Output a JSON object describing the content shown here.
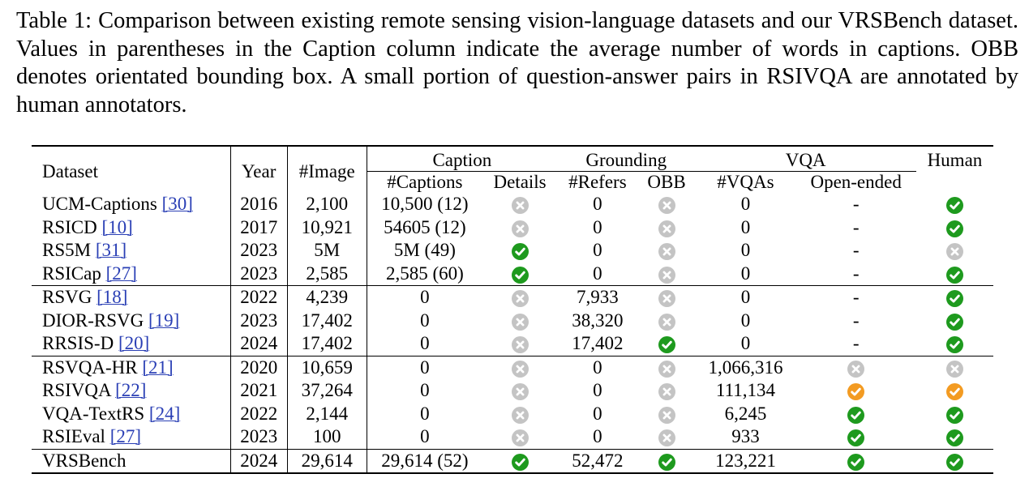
{
  "caption": "Table 1: Comparison between existing remote sensing vision-language datasets and our VRSBench dataset. Values in parentheses in the Caption column indicate the average number of words in captions. OBB denotes orientated bounding box. A small portion of question-answer pairs in RSIVQA are annotated by human annotators.",
  "headers": {
    "dataset": "Dataset",
    "year": "Year",
    "image": "#Image",
    "caption_group": "Caption",
    "grounding_group": "Grounding",
    "vqa_group": "VQA",
    "human": "Human",
    "captions": "#Captions",
    "details": "Details",
    "refers": "#Refers",
    "obb": "OBB",
    "vqas": "#VQAs",
    "open_ended": "Open-ended"
  },
  "icon_colors": {
    "yes": "#1e9a1e",
    "no": "#c4c4c4",
    "partial": "#f39b22"
  },
  "rows": [
    {
      "name": "UCM-Captions",
      "cite": "[30]",
      "year": "2016",
      "images": "2,100",
      "captions": "10,500 (12)",
      "details": "no",
      "refers": "0",
      "obb": "no",
      "vqas": "0",
      "open": "-",
      "human": "yes"
    },
    {
      "name": "RSICD",
      "cite": "[10]",
      "year": "2017",
      "images": "10,921",
      "captions": "54605 (12)",
      "details": "no",
      "refers": "0",
      "obb": "no",
      "vqas": "0",
      "open": "-",
      "human": "yes"
    },
    {
      "name": "RS5M",
      "cite": "[31]",
      "year": "2023",
      "images": "5M",
      "captions": "5M (49)",
      "details": "yes",
      "refers": "0",
      "obb": "no",
      "vqas": "0",
      "open": "-",
      "human": "no"
    },
    {
      "name": "RSICap",
      "cite": "[27]",
      "year": "2023",
      "images": "2,585",
      "captions": "2,585 (60)",
      "details": "yes",
      "refers": "0",
      "obb": "no",
      "vqas": "0",
      "open": "-",
      "human": "yes"
    },
    {
      "name": "RSVG",
      "cite": "[18]",
      "year": "2022",
      "images": "4,239",
      "captions": "0",
      "details": "no",
      "refers": "7,933",
      "obb": "no",
      "vqas": "0",
      "open": "-",
      "human": "yes",
      "group_start": true
    },
    {
      "name": "DIOR-RSVG",
      "cite": "[19]",
      "year": "2023",
      "images": "17,402",
      "captions": "0",
      "details": "no",
      "refers": "38,320",
      "obb": "no",
      "vqas": "0",
      "open": "-",
      "human": "yes"
    },
    {
      "name": "RRSIS-D",
      "cite": "[20]",
      "year": "2024",
      "images": "17,402",
      "captions": "0",
      "details": "no",
      "refers": "17,402",
      "obb": "yes",
      "vqas": "0",
      "open": "-",
      "human": "yes"
    },
    {
      "name": "RSVQA-HR",
      "cite": "[21]",
      "year": "2020",
      "images": "10,659",
      "captions": "0",
      "details": "no",
      "refers": "0",
      "obb": "no",
      "vqas": "1,066,316",
      "open": "no",
      "human": "no",
      "group_start": true
    },
    {
      "name": "RSIVQA",
      "cite": "[22]",
      "year": "2021",
      "images": "37,264",
      "captions": "0",
      "details": "no",
      "refers": "0",
      "obb": "no",
      "vqas": "111,134",
      "open": "partial",
      "human": "partial"
    },
    {
      "name": "VQA-TextRS",
      "cite": "[24]",
      "year": "2022",
      "images": "2,144",
      "captions": "0",
      "details": "no",
      "refers": "0",
      "obb": "no",
      "vqas": "6,245",
      "open": "yes",
      "human": "yes"
    },
    {
      "name": "RSIEval",
      "cite": "[27]",
      "year": "2023",
      "images": "100",
      "captions": "0",
      "details": "no",
      "refers": "0",
      "obb": "no",
      "vqas": "933",
      "open": "yes",
      "human": "yes"
    },
    {
      "name": "VRSBench",
      "cite": "",
      "year": "2024",
      "images": "29,614",
      "captions": "29,614 (52)",
      "details": "yes",
      "refers": "52,472",
      "obb": "yes",
      "vqas": "123,221",
      "open": "yes",
      "human": "yes",
      "group_start": true
    }
  ]
}
